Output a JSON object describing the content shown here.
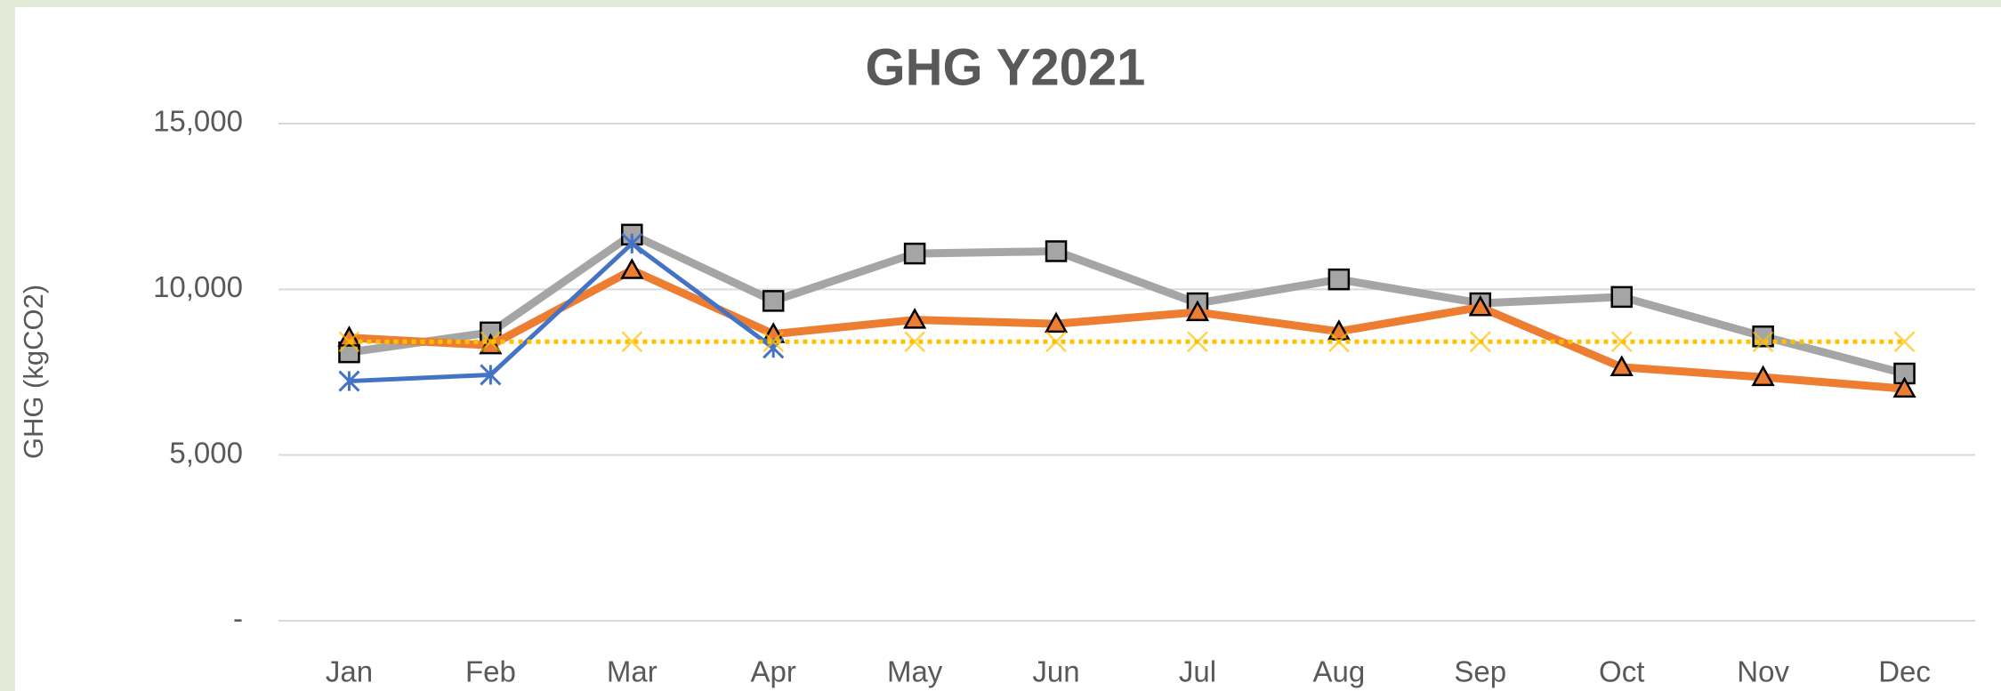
{
  "chart_data": {
    "type": "line",
    "title": "GHG Y2021",
    "ylabel": "GHG (kgCO2)",
    "categories": [
      "Jan",
      "Feb",
      "Mar",
      "Apr",
      "May",
      "Jun",
      "Jul",
      "Aug",
      "Sep",
      "Oct",
      "Nov",
      "Dec"
    ],
    "ylim": [
      0,
      15000
    ],
    "yticks": [
      {
        "value": 0,
        "label": "-"
      },
      {
        "value": 5000,
        "label": "5,000"
      },
      {
        "value": 10000,
        "label": "10,000"
      },
      {
        "value": 15000,
        "label": "15,000"
      }
    ],
    "grid": true,
    "series": [
      {
        "color": "#a5a5a5",
        "marker": "square",
        "values": [
          8100,
          8700,
          11650,
          9650,
          11080,
          11150,
          9580,
          10300,
          9580,
          9770,
          8580,
          7460
        ]
      },
      {
        "color": "#ed7d31",
        "marker": "triangle",
        "values": [
          8540,
          8310,
          10580,
          8650,
          9080,
          8960,
          9310,
          8730,
          9460,
          7650,
          7350,
          7000
        ]
      },
      {
        "color": "#4472c4",
        "marker": "asterisk",
        "values": [
          7230,
          7420,
          11380,
          8230,
          null,
          null,
          null,
          null,
          null,
          null,
          null,
          null
        ]
      },
      {
        "color": "#ffc000",
        "marker": "x",
        "dashed": true,
        "values": [
          8420,
          8420,
          8420,
          8420,
          8420,
          8420,
          8420,
          8420,
          8420,
          8420,
          8420,
          8420
        ]
      }
    ]
  }
}
